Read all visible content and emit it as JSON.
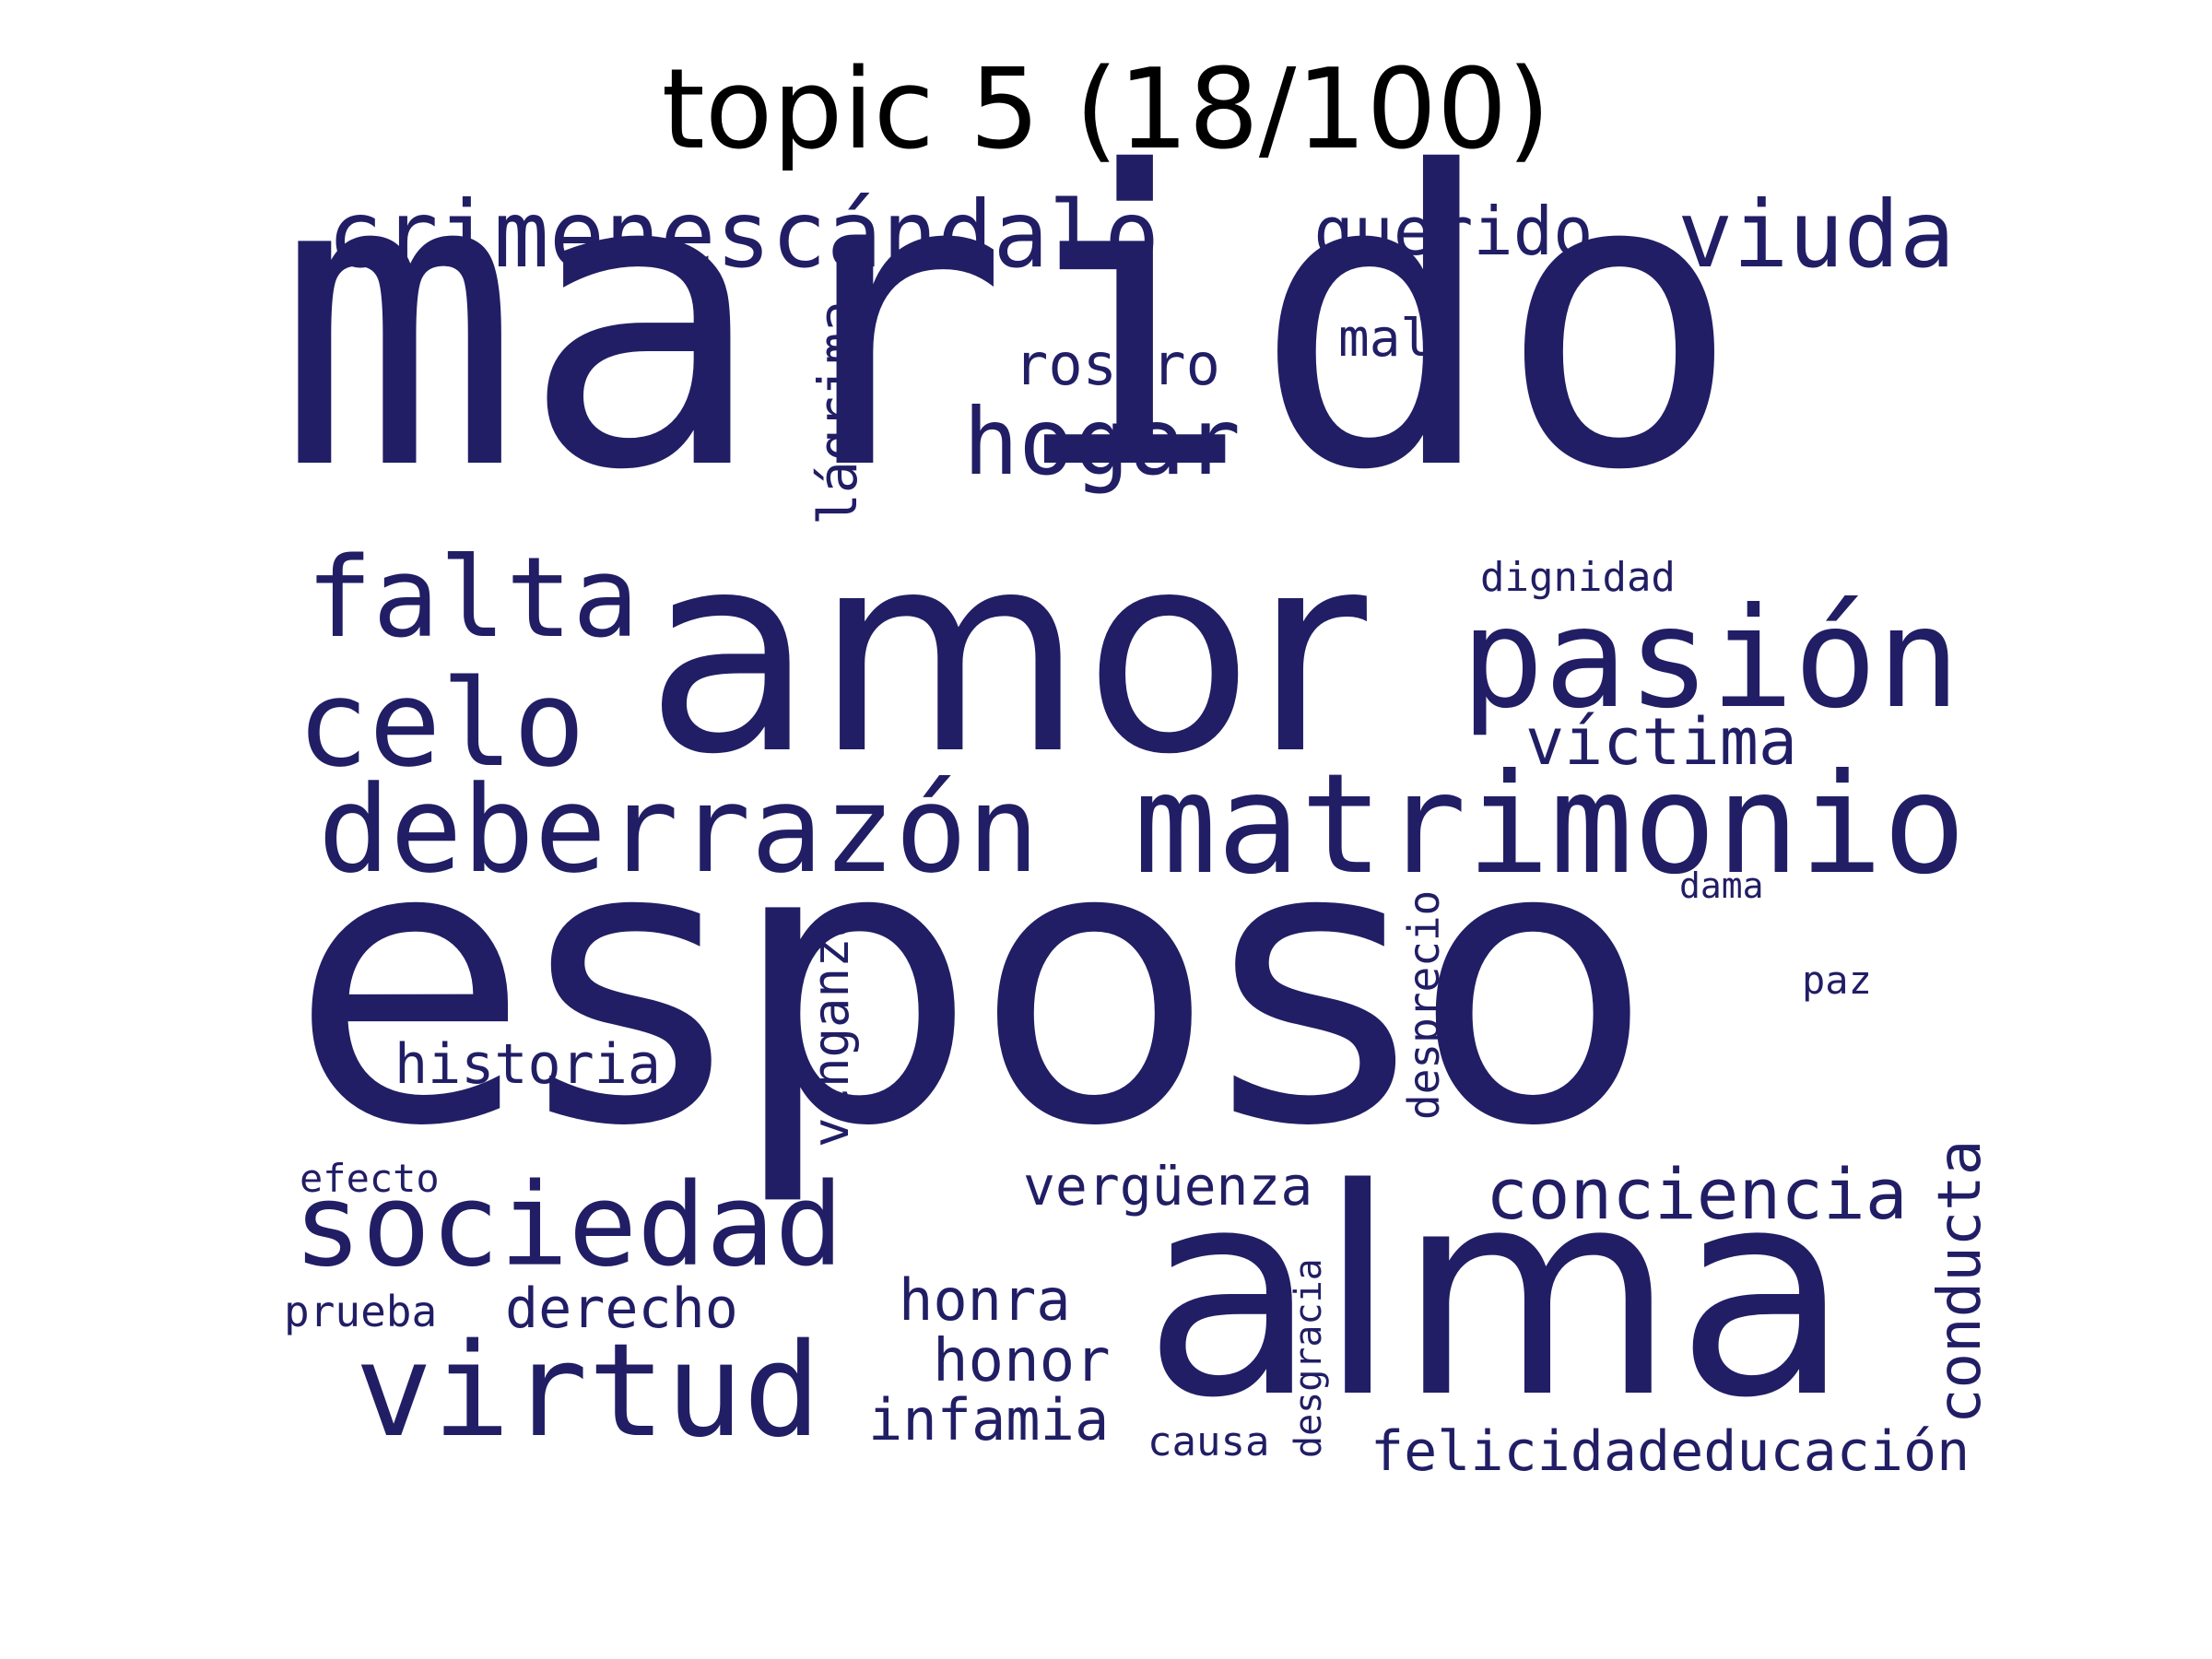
{
  "title": "topic 5 (18/100)",
  "color": "#211e65",
  "words": [
    {
      "id": "marido",
      "text": "marido"
    },
    {
      "id": "esposo",
      "text": "esposo"
    },
    {
      "id": "amor",
      "text": "amor"
    },
    {
      "id": "alma",
      "text": "alma"
    },
    {
      "id": "matrimonio",
      "text": "matrimonio"
    },
    {
      "id": "pasion",
      "text": "pasión"
    },
    {
      "id": "deberrazon",
      "text": "deberrazón"
    },
    {
      "id": "celo",
      "text": "celo"
    },
    {
      "id": "falta",
      "text": "falta"
    },
    {
      "id": "crimenescandalo",
      "text": "crimenescándalo"
    },
    {
      "id": "viuda",
      "text": "viuda"
    },
    {
      "id": "querido",
      "text": "querido"
    },
    {
      "id": "hogar",
      "text": "hogar"
    },
    {
      "id": "rostro",
      "text": "rostro"
    },
    {
      "id": "mal",
      "text": "mal"
    },
    {
      "id": "lagrima",
      "text": "lágrima"
    },
    {
      "id": "dignidad",
      "text": "dignidad"
    },
    {
      "id": "victima",
      "text": "víctima"
    },
    {
      "id": "sociedad",
      "text": "sociedad"
    },
    {
      "id": "virtud",
      "text": "virtud"
    },
    {
      "id": "historia",
      "text": "historia"
    },
    {
      "id": "venganza",
      "text": "venganza"
    },
    {
      "id": "desprecio",
      "text": "desprecio"
    },
    {
      "id": "dama",
      "text": "dama"
    },
    {
      "id": "paz",
      "text": "paz"
    },
    {
      "id": "conciencia",
      "text": "conciencia"
    },
    {
      "id": "conducta",
      "text": "conducta"
    },
    {
      "id": "verguenza",
      "text": "vergüenza"
    },
    {
      "id": "honra",
      "text": "honra"
    },
    {
      "id": "honor",
      "text": "honor"
    },
    {
      "id": "infamia",
      "text": "infamia"
    },
    {
      "id": "derecho",
      "text": "derecho"
    },
    {
      "id": "prueba",
      "text": "prueba"
    },
    {
      "id": "efecto",
      "text": "efecto"
    },
    {
      "id": "causa",
      "text": "causa"
    },
    {
      "id": "desgracia",
      "text": "desgracia"
    },
    {
      "id": "felicidadeducacion",
      "text": "felicidadeducación"
    }
  ]
}
